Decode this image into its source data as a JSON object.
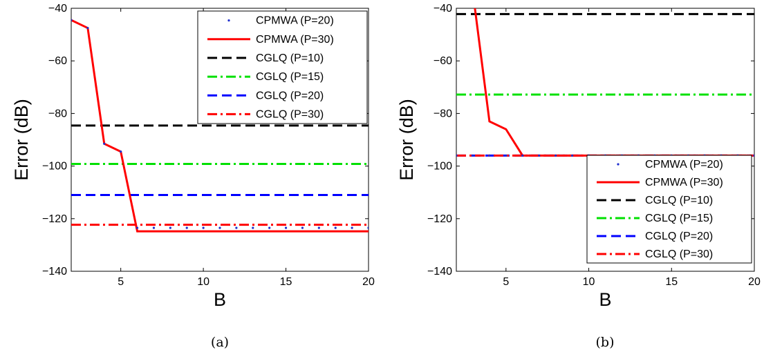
{
  "chart_data": [
    {
      "type": "line",
      "caption": "(a)",
      "xlabel": "B",
      "ylabel": "Error (dB)",
      "xlim": [
        2,
        20
      ],
      "ylim": [
        -140,
        -40
      ],
      "xticks": [
        "5",
        "10",
        "15",
        "20"
      ],
      "yticks": [
        "−40",
        "−60",
        "−80",
        "−100",
        "−120",
        "−140"
      ],
      "legend_position": "top-right",
      "series": [
        {
          "name": "CPMWA (P=20)",
          "style": "dots",
          "color": "#1f2fcf",
          "x": [
            2,
            3,
            4,
            5,
            6,
            7,
            8,
            9,
            10,
            11,
            12,
            13,
            14,
            15,
            16,
            17,
            18,
            19,
            20
          ],
          "y": [
            -44.5,
            -47.5,
            -91.5,
            -94.5,
            -123.5,
            -123.5,
            -123.5,
            -123.5,
            -123.5,
            -123.5,
            -123.5,
            -123.5,
            -123.5,
            -123.5,
            -123.5,
            -123.5,
            -123.5,
            -123.5,
            -123.5
          ]
        },
        {
          "name": "CPMWA (P=30)",
          "style": "solid",
          "color": "#ff0000",
          "x": [
            2,
            3,
            4,
            5,
            6,
            7,
            8,
            9,
            10,
            11,
            12,
            13,
            14,
            15,
            16,
            17,
            18,
            19,
            20
          ],
          "y": [
            -44.5,
            -47.5,
            -91.5,
            -94.5,
            -124.8,
            -124.8,
            -124.8,
            -124.8,
            -124.8,
            -124.8,
            -124.8,
            -124.8,
            -124.8,
            -124.8,
            -124.8,
            -124.8,
            -124.8,
            -124.8,
            -124.8
          ]
        },
        {
          "name": "CGLQ (P=10)",
          "style": "dash",
          "color": "#000000",
          "x": [
            2,
            20
          ],
          "y": [
            -84.6,
            -84.6
          ]
        },
        {
          "name": "CGLQ (P=15)",
          "style": "dashdot",
          "color": "#00e000",
          "x": [
            2,
            20
          ],
          "y": [
            -99.2,
            -99.2
          ]
        },
        {
          "name": "CGLQ (P=20)",
          "style": "dash",
          "color": "#0000ff",
          "x": [
            2,
            20
          ],
          "y": [
            -111.0,
            -111.0
          ]
        },
        {
          "name": "CGLQ (P=30)",
          "style": "dashdot",
          "color": "#ff0000",
          "x": [
            2,
            20
          ],
          "y": [
            -122.3,
            -122.3
          ]
        }
      ]
    },
    {
      "type": "line",
      "caption": "(b)",
      "xlabel": "B",
      "ylabel": "Error (dB)",
      "xlim": [
        2,
        20
      ],
      "ylim": [
        -140,
        -40
      ],
      "xticks": [
        "5",
        "10",
        "15",
        "20"
      ],
      "yticks": [
        "−40",
        "−60",
        "−80",
        "−100",
        "−120",
        "−140"
      ],
      "legend_position": "bottom-right",
      "series": [
        {
          "name": "CPMWA (P=20)",
          "style": "dots",
          "color": "#1f2fcf",
          "x": [
            2,
            3,
            4,
            5,
            6,
            7,
            8,
            9,
            10,
            11,
            12,
            13,
            14,
            15,
            16,
            17,
            18,
            19,
            20
          ],
          "y": [
            -96,
            -96,
            -96,
            -96,
            -96,
            -96,
            -96,
            -96,
            -96,
            -96,
            -96,
            -96,
            -96,
            -96,
            -96,
            -96,
            -96,
            -96,
            -96
          ]
        },
        {
          "name": "CPMWA (P=30)",
          "style": "solid",
          "color": "#ff0000",
          "x": [
            3,
            4,
            5,
            6,
            7,
            8,
            9,
            10,
            11,
            12,
            13,
            14,
            15,
            16,
            17,
            18,
            19,
            20
          ],
          "y": [
            -34,
            -83,
            -86,
            -96,
            -96,
            -96,
            -96,
            -96,
            -96,
            -96,
            -96,
            -96,
            -96,
            -96,
            -96,
            -96,
            -96,
            -96
          ]
        },
        {
          "name": "CGLQ (P=10)",
          "style": "dash",
          "color": "#000000",
          "x": [
            2,
            20
          ],
          "y": [
            -42.2,
            -42.2
          ]
        },
        {
          "name": "CGLQ (P=15)",
          "style": "dashdot",
          "color": "#00e000",
          "x": [
            2,
            20
          ],
          "y": [
            -72.8,
            -72.8
          ]
        },
        {
          "name": "CGLQ (P=20)",
          "style": "dash",
          "color": "#0000ff",
          "x": [
            2,
            20
          ],
          "y": [
            -96,
            -96
          ]
        },
        {
          "name": "CGLQ (P=30)",
          "style": "dashdot",
          "color": "#ff0000",
          "x": [
            2,
            20
          ],
          "y": [
            -96,
            -96
          ]
        }
      ]
    }
  ]
}
